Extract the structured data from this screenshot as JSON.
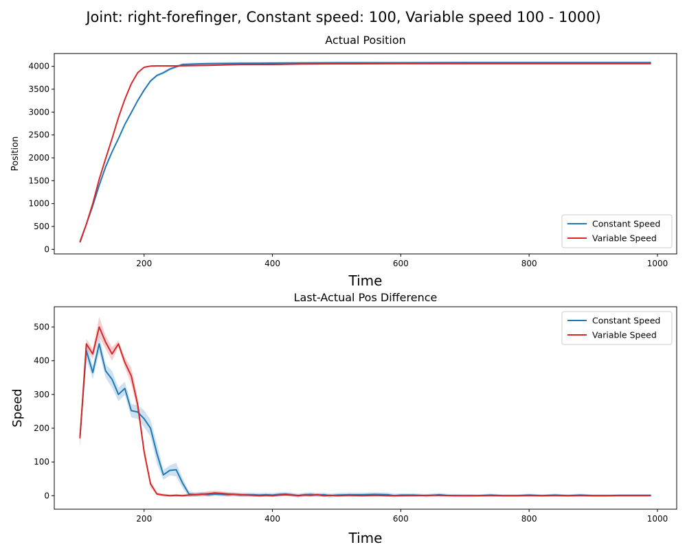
{
  "figure": {
    "suptitle": "Joint: right-forefinger, Constant speed: 100, Variable speed 100 - 1000)"
  },
  "colors": {
    "constant": "#1f77b4",
    "variable": "#d62728"
  },
  "chart_data": [
    {
      "type": "line",
      "title": "Actual Position",
      "xlabel": "Time",
      "ylabel": "Position",
      "xlim": [
        60,
        1030
      ],
      "ylim": [
        -100,
        4280
      ],
      "xticks": [
        200,
        400,
        600,
        800,
        1000
      ],
      "yticks": [
        0,
        500,
        1000,
        1500,
        2000,
        2500,
        3000,
        3500,
        4000
      ],
      "grid": false,
      "legend": "lower right",
      "series": [
        {
          "name": "Constant Speed",
          "color": "#1f77b4",
          "x": [
            100,
            110,
            120,
            130,
            140,
            150,
            160,
            170,
            180,
            190,
            200,
            210,
            220,
            230,
            240,
            250,
            260,
            280,
            300,
            350,
            400,
            450,
            500,
            600,
            700,
            800,
            900,
            990
          ],
          "y": [
            170,
            550,
            950,
            1400,
            1800,
            2130,
            2420,
            2730,
            2990,
            3250,
            3480,
            3680,
            3800,
            3860,
            3940,
            3990,
            4040,
            4050,
            4060,
            4065,
            4070,
            4075,
            4078,
            4078,
            4080,
            4080,
            4080,
            4080
          ],
          "band": 30
        },
        {
          "name": "Variable Speed",
          "color": "#d62728",
          "x": [
            100,
            110,
            120,
            130,
            140,
            150,
            160,
            170,
            180,
            190,
            200,
            210,
            220,
            250,
            300,
            350,
            400,
            450,
            500,
            600,
            700,
            800,
            900,
            990
          ],
          "y": [
            150,
            550,
            1000,
            1530,
            1980,
            2420,
            2880,
            3280,
            3620,
            3860,
            3980,
            4005,
            4010,
            4010,
            4020,
            4040,
            4040,
            4050,
            4055,
            4060,
            4060,
            4060,
            4060,
            4060
          ],
          "band": 15
        }
      ]
    },
    {
      "type": "line",
      "title": "Last-Actual Pos Difference",
      "xlabel": "Time",
      "ylabel": "Speed",
      "xlim": [
        60,
        1030
      ],
      "ylim": [
        -40,
        560
      ],
      "xticks": [
        200,
        400,
        600,
        800,
        1000
      ],
      "yticks": [
        0,
        100,
        200,
        300,
        400,
        500
      ],
      "grid": false,
      "legend": "upper right",
      "series": [
        {
          "name": "Constant Speed",
          "color": "#1f77b4",
          "x": [
            100,
            110,
            120,
            130,
            140,
            150,
            160,
            170,
            180,
            190,
            200,
            210,
            220,
            230,
            240,
            250,
            260,
            270,
            280,
            290,
            300,
            310,
            320,
            330,
            340,
            350,
            360,
            370,
            380,
            390,
            400,
            410,
            420,
            430,
            440,
            450,
            460,
            470,
            480,
            490,
            500,
            520,
            540,
            560,
            580,
            590,
            600,
            620,
            640,
            660,
            670,
            680,
            700,
            720,
            740,
            760,
            780,
            800,
            820,
            840,
            860,
            880,
            900,
            920,
            940,
            960,
            990
          ],
          "y": [
            175,
            430,
            365,
            450,
            370,
            345,
            300,
            318,
            252,
            248,
            228,
            200,
            125,
            62,
            75,
            77,
            37,
            5,
            3,
            5,
            3,
            5,
            4,
            3,
            4,
            2,
            3,
            3,
            2,
            3,
            2,
            4,
            5,
            3,
            0,
            3,
            4,
            2,
            3,
            0,
            2,
            3,
            3,
            4,
            3,
            0,
            2,
            2,
            0,
            3,
            1,
            0,
            0,
            0,
            2,
            0,
            0,
            2,
            0,
            2,
            0,
            2,
            0,
            0,
            1,
            1,
            1
          ],
          "band": [
            30,
            25,
            20,
            25,
            20,
            25,
            20,
            20,
            20,
            20,
            25,
            25,
            30,
            15,
            15,
            20,
            15,
            8,
            6,
            6,
            6,
            6,
            6,
            6,
            6,
            6,
            6,
            6,
            6,
            6,
            6,
            6,
            6,
            6,
            6,
            6,
            6,
            6,
            6,
            6,
            6,
            6,
            6,
            6,
            6,
            6,
            5,
            5,
            5,
            5,
            5,
            5,
            5,
            4,
            4,
            4,
            4,
            4,
            4,
            4,
            4,
            4,
            4,
            4,
            3,
            3,
            3
          ]
        },
        {
          "name": "Variable Speed",
          "color": "#d62728",
          "x": [
            100,
            110,
            120,
            130,
            140,
            150,
            160,
            170,
            180,
            190,
            200,
            210,
            220,
            230,
            240,
            250,
            260,
            270,
            280,
            290,
            300,
            310,
            320,
            330,
            340,
            350,
            360,
            370,
            380,
            390,
            400,
            410,
            420,
            430,
            440,
            450,
            460,
            470,
            480,
            490,
            500,
            520,
            540,
            560,
            580,
            600,
            650,
            700,
            750,
            800,
            850,
            900,
            950,
            990
          ],
          "y": [
            170,
            450,
            420,
            500,
            455,
            420,
            450,
            395,
            355,
            270,
            130,
            35,
            5,
            2,
            0,
            1,
            0,
            2,
            3,
            4,
            6,
            8,
            7,
            5,
            4,
            3,
            2,
            1,
            0,
            1,
            0,
            2,
            3,
            2,
            0,
            2,
            1,
            3,
            0,
            1,
            0,
            1,
            0,
            1,
            0,
            0,
            1,
            0,
            0,
            0,
            0,
            0,
            0,
            0
          ],
          "band": [
            25,
            15,
            15,
            30,
            20,
            20,
            10,
            15,
            25,
            20,
            15,
            10,
            5,
            4,
            4,
            4,
            4,
            5,
            6,
            6,
            7,
            7,
            6,
            6,
            5,
            5,
            4,
            4,
            4,
            4,
            4,
            4,
            4,
            4,
            4,
            4,
            4,
            4,
            4,
            3,
            3,
            3,
            3,
            3,
            3,
            3,
            2,
            2,
            2,
            2,
            2,
            2,
            2,
            2
          ]
        }
      ]
    }
  ]
}
